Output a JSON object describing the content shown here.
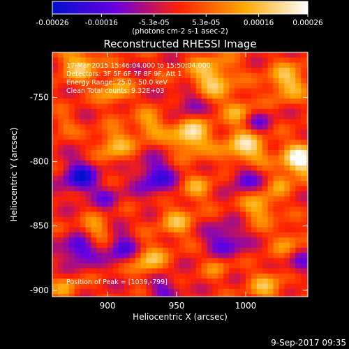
{
  "chart_data": {
    "type": "heatmap",
    "title": "Reconstructed RHESSI Image",
    "xlabel": "Heliocentric X (arcsec)",
    "ylabel": "Heliocentric Y (arcsec)",
    "xlim": [
      860,
      1045
    ],
    "ylim": [
      -905,
      -715
    ],
    "xticks": [
      900,
      950,
      1000
    ],
    "yticks": [
      -750,
      -800,
      -850,
      -900
    ],
    "colorbar": {
      "range": [
        -0.00026,
        0.00026
      ],
      "tick_values": [
        -0.00026,
        -0.00016,
        -5.3e-05,
        5.3e-05,
        0.00016,
        0.00026
      ],
      "tick_labels": [
        "-0.00026",
        "-0.00016",
        "-5.3e-05",
        "5.3e-05",
        "0.00016",
        "0.00026"
      ],
      "units_label": "(photons cm-2 s-1 asec-2)",
      "colors": [
        "#0010d0",
        "#6a00e0",
        "#ff2200",
        "#ffa800",
        "#ffffff"
      ]
    },
    "annotations": [
      "17-Mar-2015 15:46:04.000 to 15:50:04.000",
      "Detectors: 3F 5F 6F 7F 8F 9F, Att 1",
      "Energy Range: 25.0 - 50.0 keV",
      "Clean    Total counts: 9.32E+03"
    ],
    "peak_label": "Position of Peak = [1039,-799]",
    "peak_position": [
      1039,
      -799
    ],
    "grid_step_arcsec": 4,
    "sources": [
      {
        "x": 880,
        "y": -724,
        "intensity": 0.00016,
        "sigma": 10
      },
      {
        "x": 905,
        "y": -745,
        "intensity": 0.00014,
        "sigma": 8
      },
      {
        "x": 975,
        "y": -735,
        "intensity": 0.00018,
        "sigma": 12
      },
      {
        "x": 1030,
        "y": -738,
        "intensity": 0.00017,
        "sigma": 10
      },
      {
        "x": 905,
        "y": -787,
        "intensity": 0.00015,
        "sigma": 9
      },
      {
        "x": 930,
        "y": -772,
        "intensity": 0.00013,
        "sigma": 8
      },
      {
        "x": 960,
        "y": -780,
        "intensity": 0.00022,
        "sigma": 10
      },
      {
        "x": 1000,
        "y": -790,
        "intensity": 0.00021,
        "sigma": 11
      },
      {
        "x": 1039,
        "y": -799,
        "intensity": 0.00026,
        "sigma": 9
      },
      {
        "x": 995,
        "y": -760,
        "intensity": 0.00012,
        "sigma": 7
      },
      {
        "x": 965,
        "y": -820,
        "intensity": 0.00011,
        "sigma": 8
      },
      {
        "x": 1010,
        "y": -835,
        "intensity": 0.00015,
        "sigma": 9
      },
      {
        "x": 950,
        "y": -847,
        "intensity": 0.00013,
        "sigma": 9
      },
      {
        "x": 890,
        "y": -855,
        "intensity": 0.00014,
        "sigma": 8
      },
      {
        "x": 1030,
        "y": -862,
        "intensity": 0.00011,
        "sigma": 7
      },
      {
        "x": 930,
        "y": -878,
        "intensity": 0.00016,
        "sigma": 9
      },
      {
        "x": 980,
        "y": -880,
        "intensity": 0.0001,
        "sigma": 7
      },
      {
        "x": 1015,
        "y": -897,
        "intensity": 0.00013,
        "sigma": 9
      },
      {
        "x": 870,
        "y": -898,
        "intensity": 0.00011,
        "sigma": 7
      },
      {
        "x": 1025,
        "y": -817,
        "intensity": 9e-05,
        "sigma": 6
      },
      {
        "x": 868,
        "y": -772,
        "intensity": 8e-05,
        "sigma": 6
      },
      {
        "x": 880,
        "y": -812,
        "intensity": -0.00022,
        "sigma": 9
      },
      {
        "x": 935,
        "y": -812,
        "intensity": -0.00018,
        "sigma": 10
      },
      {
        "x": 1000,
        "y": -812,
        "intensity": -0.00015,
        "sigma": 9
      },
      {
        "x": 985,
        "y": -862,
        "intensity": -0.00016,
        "sigma": 10
      },
      {
        "x": 880,
        "y": -868,
        "intensity": -0.0002,
        "sigma": 9
      },
      {
        "x": 910,
        "y": -867,
        "intensity": -0.00017,
        "sigma": 8
      },
      {
        "x": 960,
        "y": -755,
        "intensity": -0.00014,
        "sigma": 8
      },
      {
        "x": 1010,
        "y": -770,
        "intensity": -0.00012,
        "sigma": 7
      },
      {
        "x": 940,
        "y": -897,
        "intensity": -0.00013,
        "sigma": 8
      },
      {
        "x": 1040,
        "y": -880,
        "intensity": -0.00011,
        "sigma": 7
      },
      {
        "x": 900,
        "y": -828,
        "intensity": -0.0001,
        "sigma": 7
      }
    ]
  },
  "footer": {
    "date": "9-Sep-2017 09:35"
  }
}
